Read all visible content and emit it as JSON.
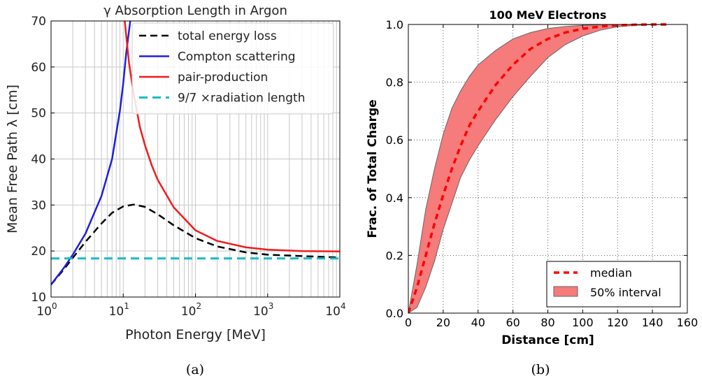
{
  "chart_data": [
    {
      "panel": "(a)",
      "type": "line",
      "title": "γ Absorption Length in Argon",
      "xlabel": "Photon Energy [MeV]",
      "ylabel": "Mean Free Path λ [cm]",
      "x_scale": "log",
      "xlim": [
        1,
        10000
      ],
      "ylim": [
        10,
        70
      ],
      "xticks": [
        {
          "value": 1,
          "base": "10",
          "exp": "0"
        },
        {
          "value": 10,
          "base": "10",
          "exp": "1"
        },
        {
          "value": 100,
          "base": "10",
          "exp": "2"
        },
        {
          "value": 1000,
          "base": "10",
          "exp": "3"
        },
        {
          "value": 10000,
          "base": "10",
          "exp": "4"
        }
      ],
      "yticks": [
        "10",
        "20",
        "30",
        "40",
        "50",
        "60",
        "70"
      ],
      "grid": true,
      "legend_position": "top-right",
      "series": [
        {
          "name": "total energy loss",
          "color": "#000000",
          "style": "dashed",
          "x": [
            1,
            1.5,
            2,
            3,
            5,
            7,
            10,
            14,
            20,
            30,
            50,
            100,
            200,
            500,
            1000,
            3000,
            10000
          ],
          "y": [
            12.7,
            16.0,
            18.5,
            22.0,
            26.0,
            28.3,
            29.7,
            30.1,
            29.6,
            28.0,
            25.6,
            22.8,
            21.0,
            19.7,
            19.2,
            18.9,
            18.6
          ]
        },
        {
          "name": "Compton scattering",
          "color": "#1f1fdd",
          "style": "solid",
          "x": [
            1,
            1.5,
            2,
            3,
            5,
            7,
            9,
            10,
            11,
            12.5
          ],
          "y": [
            12.7,
            16.3,
            19.2,
            23.8,
            32.0,
            40.0,
            50.5,
            56.5,
            63.0,
            70.0
          ]
        },
        {
          "name": "pair-production",
          "color": "#ee1c1c",
          "style": "solid",
          "x": [
            10.5,
            12,
            14,
            17,
            20,
            25,
            30,
            50,
            100,
            200,
            500,
            1000,
            3000,
            10000
          ],
          "y": [
            70.0,
            61.0,
            54.0,
            47.0,
            43.0,
            38.5,
            35.5,
            29.5,
            24.5,
            22.2,
            20.8,
            20.3,
            20.0,
            19.9
          ]
        },
        {
          "name": "9/7 ×radiation length",
          "color": "#17bcc4",
          "style": "dashed",
          "x": [
            1,
            10000
          ],
          "y": [
            18.4,
            18.4
          ]
        }
      ]
    },
    {
      "panel": "(b)",
      "type": "area",
      "title": "100 MeV Electrons",
      "xlabel": "Distance [cm]",
      "ylabel": "Frac. of Total Charge",
      "xlim": [
        0,
        160
      ],
      "ylim": [
        0,
        1
      ],
      "xticks": [
        "0",
        "20",
        "40",
        "60",
        "80",
        "100",
        "120",
        "140",
        "160"
      ],
      "yticks": [
        "0.0",
        "0.2",
        "0.4",
        "0.6",
        "0.8",
        "1.0"
      ],
      "grid": true,
      "legend_position": "bottom-right",
      "series": [
        {
          "name": "median",
          "color": "#ff0000",
          "style": "dashed",
          "x": [
            0,
            5,
            10,
            15,
            20,
            25,
            30,
            35,
            40,
            50,
            60,
            70,
            80,
            90,
            100,
            110,
            120,
            130,
            140,
            150
          ],
          "y": [
            0.0,
            0.09,
            0.2,
            0.31,
            0.41,
            0.5,
            0.58,
            0.65,
            0.7,
            0.79,
            0.86,
            0.915,
            0.95,
            0.972,
            0.985,
            0.993,
            0.997,
            0.999,
            1.0,
            1.0
          ]
        },
        {
          "name": "50% interval",
          "color": "#f67b7b",
          "edge_color": "#666666",
          "style": "band",
          "x": [
            0,
            5,
            10,
            15,
            20,
            25,
            30,
            35,
            40,
            50,
            60,
            70,
            80,
            90,
            100,
            110,
            120,
            130,
            140,
            150
          ],
          "upper": [
            0.0,
            0.17,
            0.36,
            0.5,
            0.62,
            0.71,
            0.77,
            0.82,
            0.86,
            0.91,
            0.95,
            0.972,
            0.986,
            0.993,
            0.997,
            0.999,
            1.0,
            1.0,
            1.0,
            1.0
          ],
          "lower": [
            0.0,
            0.02,
            0.09,
            0.18,
            0.29,
            0.38,
            0.47,
            0.53,
            0.58,
            0.67,
            0.75,
            0.82,
            0.885,
            0.93,
            0.96,
            0.98,
            0.992,
            0.997,
            0.999,
            1.0
          ]
        }
      ]
    }
  ],
  "captions": [
    "(a)",
    "(b)"
  ]
}
